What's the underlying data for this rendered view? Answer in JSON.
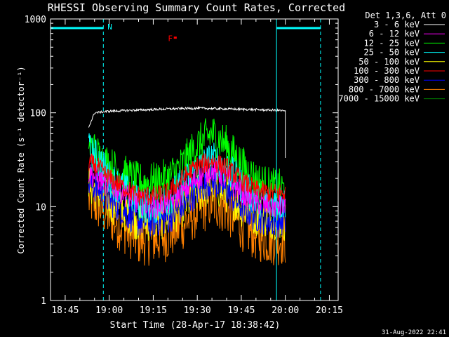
{
  "chart_data": {
    "type": "line",
    "title": "RHESSI Observing Summary Count Rates, Corrected",
    "xlabel": "Start Time (28-Apr-17 18:38:42)",
    "ylabel": "Corrected Count Rate (s⁻¹ detector⁻¹)",
    "x_unit": "time of day (HH:MM)",
    "xlim": [
      "18:40",
      "20:18"
    ],
    "x_tick_labels": [
      "18:45",
      "19:00",
      "19:15",
      "19:30",
      "19:45",
      "20:00",
      "20:15"
    ],
    "y_scale": "log",
    "ylim": [
      1,
      1000
    ],
    "y_tick_labels": [
      "1",
      "10",
      "100",
      "1000"
    ],
    "grid": false,
    "legend": {
      "placement": "right",
      "header": "Det 1,3,6, Att 0",
      "entries": [
        {
          "label": "3 - 6 keV",
          "color": "#000000"
        },
        {
          "label": "6 - 12 keV",
          "color": "#ff00ff"
        },
        {
          "label": "12 - 25 keV",
          "color": "#00ff00"
        },
        {
          "label": "25 - 50 keV",
          "color": "#00ffff"
        },
        {
          "label": "50 - 100 keV",
          "color": "#ffff00"
        },
        {
          "label": "100 - 300 keV",
          "color": "#ff0000"
        },
        {
          "label": "300 - 800 keV",
          "color": "#0000ff"
        },
        {
          "label": "800 - 7000 keV",
          "color": "#ff8000"
        },
        {
          "label": "7000 - 15000 keV",
          "color": "#008000"
        }
      ]
    },
    "series": [
      {
        "name": "3 - 6 keV",
        "color": "#000000",
        "x": [
          "18:53",
          "18:55",
          "19:00",
          "19:10",
          "19:20",
          "19:30",
          "19:40",
          "19:50",
          "19:58",
          "20:00",
          "20:00"
        ],
        "y": [
          70,
          100,
          104,
          107,
          110,
          112,
          110,
          108,
          106,
          104,
          33
        ]
      },
      {
        "name": "6 - 12 keV",
        "color": "#ff00ff",
        "x": [
          "18:53",
          "18:57",
          "19:00",
          "19:05",
          "19:10",
          "19:15",
          "19:20",
          "19:25",
          "19:30",
          "19:35",
          "19:40",
          "19:45",
          "19:50",
          "19:55",
          "20:00"
        ],
        "y": [
          23,
          19,
          17,
          14,
          11,
          10,
          11,
          14,
          20,
          25,
          20,
          14,
          11,
          10,
          10
        ]
      },
      {
        "name": "12 - 25 keV",
        "color": "#00ff00",
        "x": [
          "18:53",
          "18:57",
          "19:00",
          "19:05",
          "19:10",
          "19:15",
          "19:20",
          "19:25",
          "19:30",
          "19:35",
          "19:40",
          "19:45",
          "19:50",
          "19:55",
          "20:00"
        ],
        "y": [
          45,
          33,
          27,
          22,
          18,
          18,
          20,
          28,
          45,
          60,
          45,
          28,
          19,
          16,
          15
        ]
      },
      {
        "name": "25 - 50 keV",
        "color": "#00ffff",
        "x": [
          "18:53",
          "18:57",
          "19:00",
          "19:05",
          "19:10",
          "19:15",
          "19:20",
          "19:25",
          "19:30",
          "19:35",
          "19:40",
          "19:45",
          "19:50",
          "19:55",
          "20:00"
        ],
        "y": [
          40,
          30,
          20,
          15,
          11,
          10,
          12,
          17,
          25,
          32,
          26,
          17,
          12,
          11,
          11
        ]
      },
      {
        "name": "50 - 100 keV",
        "color": "#ffff00",
        "x": [
          "18:53",
          "18:57",
          "19:00",
          "19:05",
          "19:10",
          "19:15",
          "19:20",
          "19:25",
          "19:30",
          "19:35",
          "19:40",
          "19:45",
          "19:50",
          "19:55",
          "20:00"
        ],
        "y": [
          17,
          14,
          11,
          9,
          7,
          7,
          7.5,
          10,
          14,
          17,
          14,
          10,
          8,
          7.5,
          7
        ]
      },
      {
        "name": "100 - 300 keV",
        "color": "#ff0000",
        "x": [
          "18:53",
          "18:57",
          "19:00",
          "19:05",
          "19:10",
          "19:15",
          "19:20",
          "19:25",
          "19:30",
          "19:35",
          "19:40",
          "19:45",
          "19:50",
          "19:55",
          "20:00"
        ],
        "y": [
          30,
          25,
          20,
          16,
          13,
          13,
          14,
          20,
          27,
          31,
          26,
          19,
          15,
          14,
          14
        ]
      },
      {
        "name": "300 - 800 keV",
        "color": "#0000ff",
        "x": [
          "18:53",
          "18:57",
          "19:00",
          "19:05",
          "19:10",
          "19:15",
          "19:20",
          "19:25",
          "19:30",
          "19:35",
          "19:40",
          "19:45",
          "19:50",
          "19:55",
          "20:00"
        ],
        "y": [
          18,
          15,
          12,
          9,
          7,
          7,
          7.5,
          10,
          15,
          19,
          15,
          10,
          8,
          7,
          7
        ]
      },
      {
        "name": "800 - 7000 keV",
        "color": "#ff8000",
        "x": [
          "18:53",
          "18:57",
          "19:00",
          "19:05",
          "19:10",
          "19:15",
          "19:20",
          "19:25",
          "19:30",
          "19:35",
          "19:40",
          "19:45",
          "19:50",
          "19:55",
          "20:00"
        ],
        "y": [
          12,
          10,
          8,
          6,
          4.5,
          4.5,
          5,
          6.5,
          9,
          11.5,
          9.5,
          6.5,
          5,
          4.5,
          4.5
        ]
      }
    ],
    "data_gap_lines": {
      "color": "#00ffff",
      "solid_x": [
        "18:40",
        "19:57"
      ],
      "dashed_x": [
        "18:58",
        "20:12"
      ],
      "level_bars": [
        {
          "x": [
            "18:40",
            "18:58"
          ],
          "y": 800
        },
        {
          "x": [
            "19:57",
            "20:12"
          ],
          "y": 800
        }
      ]
    },
    "annotations": [
      {
        "text": "N",
        "x": "18:58",
        "y": 800,
        "color": "#00ffff"
      },
      {
        "text": "F",
        "x": "19:20",
        "y": 600,
        "color": "#ff0000"
      }
    ],
    "flare_marker": {
      "x": [
        "19:22",
        "19:23"
      ],
      "y": 600,
      "color": "#ff0000"
    }
  },
  "footer": {
    "timestamp": "31-Aug-2022 22:41"
  }
}
